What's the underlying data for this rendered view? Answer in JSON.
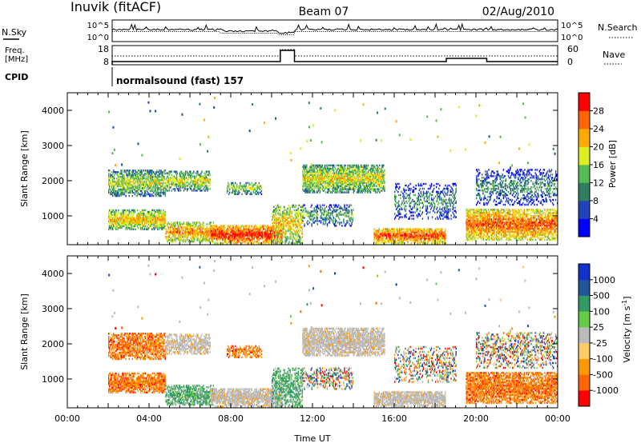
{
  "header": {
    "station": "Inuvik (fitACF)",
    "beam": "Beam 07",
    "date": "02/Aug/2010"
  },
  "noise_panel": {
    "left_label": "N.Sky",
    "right_label": "N.Search",
    "y_ticks": [
      "10^5",
      "10^0"
    ]
  },
  "freq_panel": {
    "left_label_line1": "Freq.",
    "left_label_line2": "[MHz]",
    "left_ticks": [
      "18",
      "8"
    ],
    "right_label": "Nave",
    "right_ticks": [
      "60",
      "0"
    ]
  },
  "cpid": {
    "label": "CPID",
    "program": "normalsound (fast) 157"
  },
  "colors": {
    "power": [
      "#0000ff",
      "#2244bb",
      "#2f7f5f",
      "#55bb55",
      "#ddee22",
      "#ffaa00",
      "#ff6600",
      "#ff0000"
    ],
    "velocity": [
      "#ff0000",
      "#ff6600",
      "#ff9900",
      "#ffcc66",
      "#bbbbbb",
      "#66cc44",
      "#339966",
      "#225599",
      "#1133cc"
    ],
    "ground_scatter": "#bbbbbb"
  },
  "chart_data": [
    {
      "type": "heatmap",
      "name": "power",
      "xlabel": "",
      "ylabel": "Slant Range [km]",
      "y_ticks": [
        "1000",
        "2000",
        "3000",
        "4000"
      ],
      "y_tick_values": [
        1000,
        2000,
        3000,
        4000
      ],
      "ylim": [
        180,
        4500
      ],
      "xlim": [
        0,
        24
      ],
      "colorbar": {
        "label": "Power [dB]",
        "tick_labels": [
          "4",
          "8",
          "12",
          "16",
          "20",
          "24",
          "28"
        ],
        "range": [
          0,
          32
        ]
      }
    },
    {
      "type": "heatmap",
      "name": "velocity",
      "xlabel": "Time UT",
      "ylabel": "Slant Range [km]",
      "y_ticks": [
        "1000",
        "2000",
        "3000",
        "4000"
      ],
      "y_tick_values": [
        1000,
        2000,
        3000,
        4000
      ],
      "ylim": [
        180,
        4500
      ],
      "x_ticks": [
        "00:00",
        "04:00",
        "08:00",
        "12:00",
        "16:00",
        "20:00",
        "00:00"
      ],
      "x_tick_values": [
        0,
        4,
        8,
        12,
        16,
        20,
        24
      ],
      "xlim": [
        0,
        24
      ],
      "colorbar": {
        "label": "Velocity [m s^-1]",
        "tick_labels": [
          "-1000",
          "-500",
          "-100",
          "-25",
          "25",
          "100",
          "500",
          "1000"
        ]
      }
    }
  ]
}
